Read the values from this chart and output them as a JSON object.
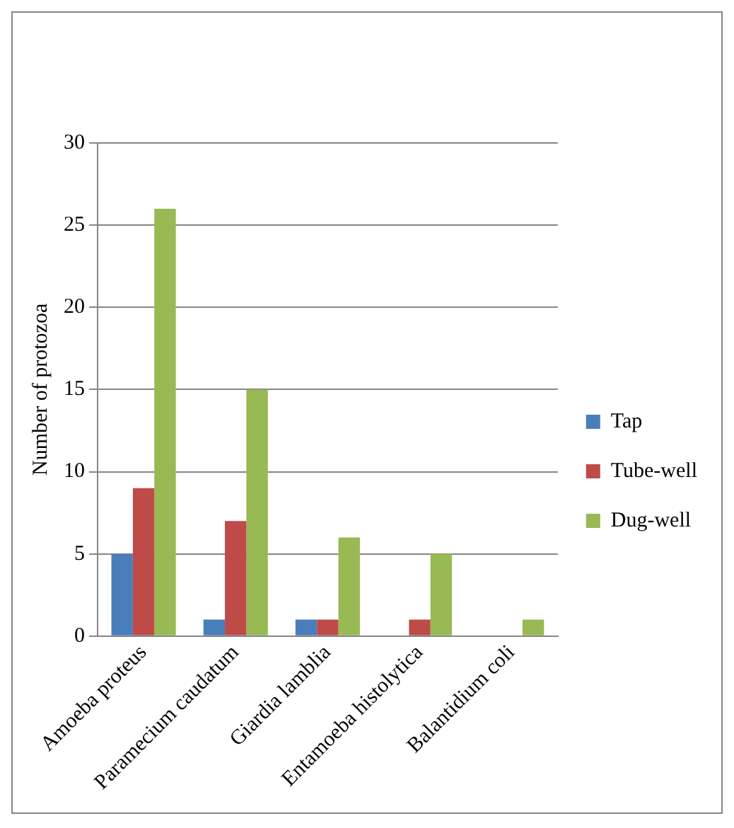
{
  "chart_data": {
    "type": "bar",
    "ylabel": "Number of protozoa",
    "categories": [
      "Amoeba proteus",
      "Paramecium caudatum",
      "Giardia lamblia",
      "Entamoeba histolytica",
      "Balantidium coli"
    ],
    "series": [
      {
        "name": "Tap",
        "color": "#4a7ebb",
        "values": [
          5,
          1,
          1,
          0,
          0
        ]
      },
      {
        "name": "Tube-well",
        "color": "#be4b48",
        "values": [
          9,
          7,
          1,
          1,
          0
        ]
      },
      {
        "name": "Dug-well",
        "color": "#98b954",
        "values": [
          26,
          15,
          6,
          5,
          1
        ]
      }
    ],
    "ylim": [
      0,
      30
    ],
    "yticks": [
      0,
      5,
      10,
      15,
      20,
      25,
      30
    ],
    "grid": "y",
    "legend": "right"
  }
}
